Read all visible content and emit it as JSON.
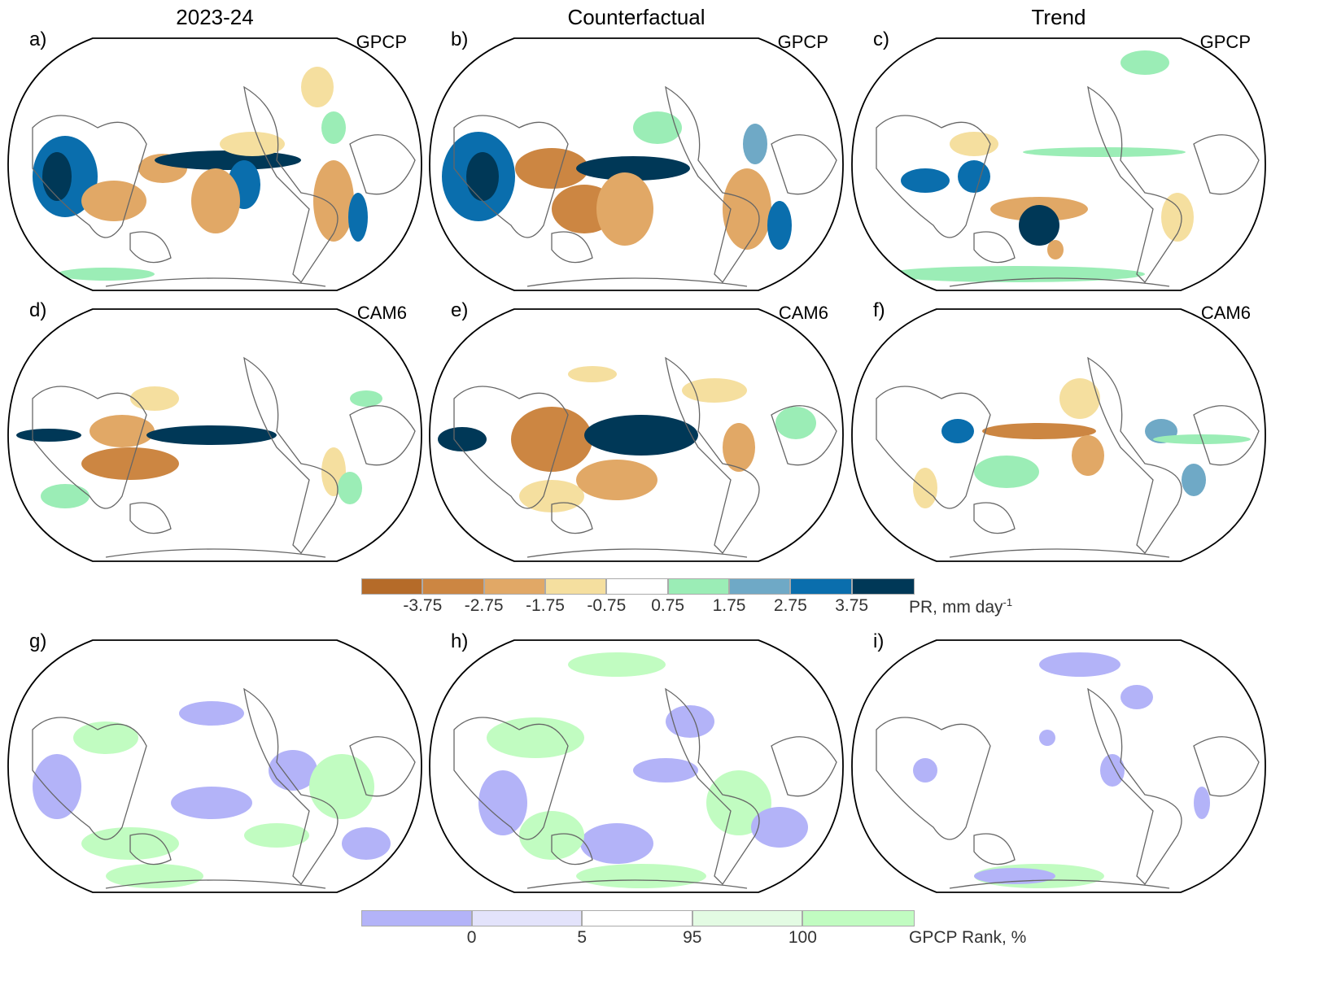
{
  "column_titles": [
    "2023-24",
    "Counterfactual",
    "Trend"
  ],
  "panels": [
    {
      "label": "a)",
      "source": "GPCP",
      "kind": "pr"
    },
    {
      "label": "b)",
      "source": "GPCP",
      "kind": "pr"
    },
    {
      "label": "c)",
      "source": "GPCP",
      "kind": "pr"
    },
    {
      "label": "d)",
      "source": "CAM6",
      "kind": "pr"
    },
    {
      "label": "e)",
      "source": "CAM6",
      "kind": "pr"
    },
    {
      "label": "f)",
      "source": "CAM6",
      "kind": "pr"
    },
    {
      "label": "g)",
      "source": "",
      "kind": "rank"
    },
    {
      "label": "h)",
      "source": "",
      "kind": "rank"
    },
    {
      "label": "i)",
      "source": "",
      "kind": "rank"
    }
  ],
  "pr_colorbar": {
    "title": "PR, mm day",
    "title_sup": "-1",
    "colors": [
      "#b56b29",
      "#cc8642",
      "#e1a866",
      "#f5df9f",
      "#ffffff",
      "#9bedb6",
      "#6fa9c6",
      "#0a6ead",
      "#003857"
    ],
    "ticks": [
      "-3.75",
      "-2.75",
      "-1.75",
      "-0.75",
      "0.75",
      "1.75",
      "2.75",
      "3.75"
    ]
  },
  "rank_colorbar": {
    "title": "GPCP Rank, %",
    "colors": [
      "#b3b3f8",
      "#e3e3fb",
      "#ffffff",
      "#e3fbe3",
      "#c1fcc1"
    ],
    "ticks": [
      "0",
      "5",
      "95",
      "100"
    ]
  }
}
